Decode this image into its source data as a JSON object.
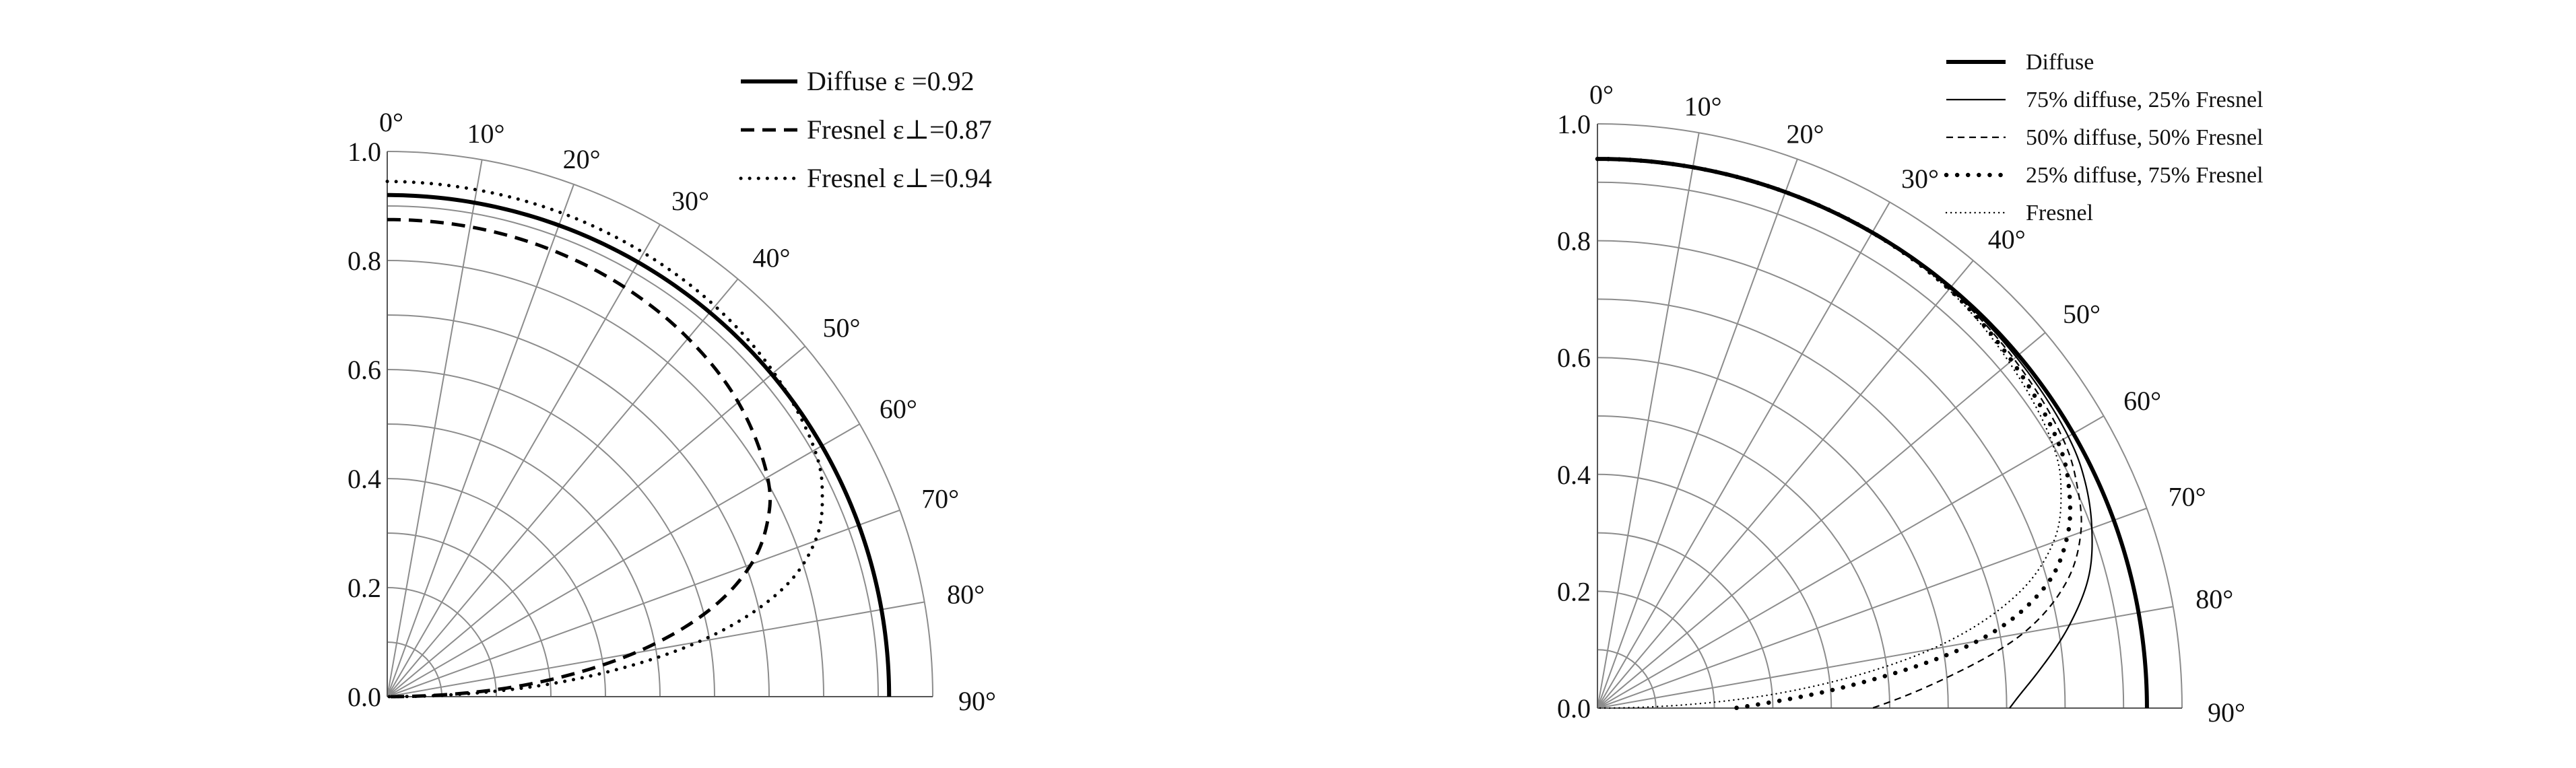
{
  "chart_data": [
    {
      "type": "polar-line",
      "panel": "left",
      "angle_unit": "degrees",
      "angle_ticks": [
        "0°",
        "10°",
        "20°",
        "30°",
        "40°",
        "50°",
        "60°",
        "70°",
        "80°",
        "90°"
      ],
      "radial_ticks": [
        "0.0",
        "0.2",
        "0.4",
        "0.6",
        "0.8",
        "1.0"
      ],
      "radial_range": [
        0,
        1.0
      ],
      "grid": true,
      "legend_position": "top-right",
      "series": [
        {
          "name": "Diffuse ε =0.92",
          "style": "solid-thick",
          "angles": [
            0,
            10,
            20,
            30,
            40,
            50,
            60,
            70,
            80,
            90
          ],
          "values": [
            0.92,
            0.92,
            0.92,
            0.92,
            0.92,
            0.92,
            0.92,
            0.92,
            0.92,
            0.92
          ]
        },
        {
          "name": "Fresnel ε⊥=0.87",
          "style": "dashed",
          "angles": [
            0,
            10,
            20,
            30,
            40,
            50,
            60,
            65,
            70,
            75,
            80,
            85,
            88,
            90
          ],
          "values": [
            0.875,
            0.875,
            0.873,
            0.868,
            0.858,
            0.84,
            0.805,
            0.77,
            0.71,
            0.61,
            0.46,
            0.26,
            0.11,
            0.0
          ]
        },
        {
          "name": "Fresnel ε⊥=0.94",
          "style": "dotted",
          "angles": [
            0,
            10,
            20,
            30,
            40,
            50,
            60,
            65,
            70,
            75,
            80,
            85,
            88,
            90
          ],
          "values": [
            0.945,
            0.944,
            0.943,
            0.94,
            0.935,
            0.925,
            0.905,
            0.88,
            0.835,
            0.745,
            0.58,
            0.33,
            0.14,
            0.0
          ]
        }
      ]
    },
    {
      "type": "polar-line",
      "panel": "right",
      "angle_unit": "degrees",
      "angle_ticks": [
        "0°",
        "10°",
        "20°",
        "30°",
        "40°",
        "50°",
        "60°",
        "70°",
        "80°",
        "90°"
      ],
      "radial_ticks": [
        "0.0",
        "0.2",
        "0.4",
        "0.6",
        "0.8",
        "1.0"
      ],
      "radial_range": [
        0,
        1.0
      ],
      "grid": true,
      "legend_position": "top-right",
      "series": [
        {
          "name": "Diffuse",
          "style": "solid-thick",
          "angles": [
            0,
            10,
            20,
            30,
            40,
            50,
            60,
            70,
            80,
            90
          ],
          "values": [
            0.94,
            0.94,
            0.94,
            0.94,
            0.94,
            0.94,
            0.94,
            0.94,
            0.94,
            0.94
          ]
        },
        {
          "name": "75% diffuse, 25% Fresnel",
          "style": "solid-thin",
          "angles": [
            0,
            10,
            20,
            30,
            40,
            50,
            60,
            65,
            70,
            75,
            80,
            85,
            88,
            90
          ],
          "values": [
            0.94,
            0.94,
            0.94,
            0.94,
            0.938,
            0.935,
            0.93,
            0.92,
            0.9,
            0.87,
            0.82,
            0.76,
            0.725,
            0.705
          ]
        },
        {
          "name": "50% diffuse, 50% Fresnel",
          "style": "dashed-thin",
          "angles": [
            0,
            10,
            20,
            30,
            40,
            50,
            60,
            65,
            70,
            75,
            80,
            85,
            88,
            90
          ],
          "values": [
            0.94,
            0.94,
            0.94,
            0.94,
            0.937,
            0.93,
            0.92,
            0.905,
            0.88,
            0.83,
            0.74,
            0.6,
            0.52,
            0.47
          ]
        },
        {
          "name": "25% diffuse, 75% Fresnel",
          "style": "dotted-bold",
          "angles": [
            0,
            10,
            20,
            30,
            40,
            50,
            60,
            65,
            70,
            75,
            80,
            85,
            88,
            90
          ],
          "values": [
            0.94,
            0.94,
            0.94,
            0.94,
            0.936,
            0.925,
            0.91,
            0.89,
            0.855,
            0.79,
            0.66,
            0.43,
            0.3,
            0.235
          ]
        },
        {
          "name": "Fresnel",
          "style": "dotted-thin",
          "angles": [
            0,
            10,
            20,
            30,
            40,
            50,
            60,
            65,
            70,
            75,
            80,
            85,
            88,
            90
          ],
          "values": [
            0.94,
            0.94,
            0.94,
            0.94,
            0.935,
            0.92,
            0.9,
            0.875,
            0.83,
            0.74,
            0.58,
            0.33,
            0.14,
            0.0
          ]
        }
      ]
    }
  ],
  "colors": {
    "grid": "#8c8c8c",
    "line": "#000000",
    "text": "#111111"
  }
}
